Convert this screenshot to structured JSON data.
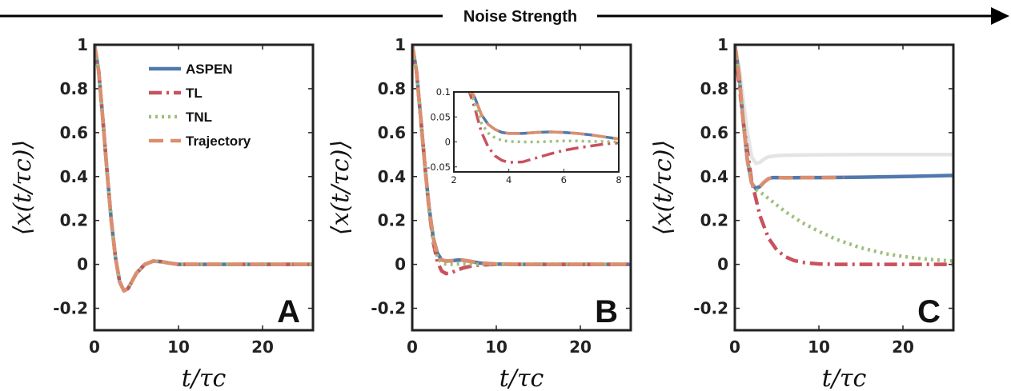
{
  "banner": {
    "label": "Noise Strength"
  },
  "colors": {
    "ASPEN": "#5079ad",
    "TL": "#c8525e",
    "TNL": "#9fc07d",
    "Trajectory": "#dc8e6e",
    "ghost": "#e4e4e4",
    "axis": "#222222"
  },
  "chart_data": [
    {
      "type": "line",
      "panel_label": "A",
      "xlabel": "t/τc",
      "ylabel": "⟨x(t/τc)⟩",
      "xlim": [
        0,
        26
      ],
      "ylim": [
        -0.3,
        1
      ],
      "xticks": [
        "0",
        "10",
        "20"
      ],
      "yticks": [
        "-0.2",
        "0",
        "0.2",
        "0.4",
        "0.6",
        "0.8",
        "1"
      ],
      "legend_position": "top-right",
      "series": [
        {
          "name": "ASPEN",
          "x": [
            0,
            0.5,
            1,
            1.5,
            2,
            2.5,
            3,
            3.5,
            4,
            5,
            6,
            7,
            8,
            9,
            10,
            12,
            15,
            20,
            26
          ],
          "y": [
            1,
            0.88,
            0.66,
            0.42,
            0.2,
            0.03,
            -0.08,
            -0.12,
            -0.11,
            -0.04,
            0.0,
            0.015,
            0.012,
            0.005,
            0.0,
            0.0,
            0.0,
            0.0,
            0.0
          ]
        },
        {
          "name": "TL",
          "x": [
            0,
            0.5,
            1,
            1.5,
            2,
            2.5,
            3,
            3.5,
            4,
            5,
            6,
            7,
            8,
            9,
            10,
            12,
            15,
            20,
            26
          ],
          "y": [
            1,
            0.88,
            0.66,
            0.42,
            0.2,
            0.03,
            -0.08,
            -0.12,
            -0.11,
            -0.04,
            0.0,
            0.015,
            0.012,
            0.005,
            0.0,
            0.0,
            0.0,
            0.0,
            0.0
          ]
        },
        {
          "name": "TNL",
          "x": [
            0,
            0.5,
            1,
            1.5,
            2,
            2.5,
            3,
            3.5,
            4,
            5,
            6,
            7,
            8,
            9,
            10,
            12,
            15,
            20,
            26
          ],
          "y": [
            1,
            0.88,
            0.66,
            0.42,
            0.2,
            0.03,
            -0.08,
            -0.12,
            -0.11,
            -0.04,
            0.0,
            0.015,
            0.012,
            0.005,
            0.0,
            0.0,
            0.0,
            0.0,
            0.0
          ]
        },
        {
          "name": "Trajectory",
          "x": [
            0,
            0.5,
            1,
            1.5,
            2,
            2.5,
            3,
            3.5,
            4,
            5,
            6,
            7,
            8,
            9,
            10,
            12,
            15,
            20,
            26
          ],
          "y": [
            1,
            0.88,
            0.66,
            0.42,
            0.2,
            0.03,
            -0.08,
            -0.12,
            -0.11,
            -0.04,
            0.0,
            0.015,
            0.012,
            0.005,
            0.0,
            0.0,
            0.0,
            0.0,
            0.0
          ]
        }
      ]
    },
    {
      "type": "line",
      "panel_label": "B",
      "xlabel": "t/τc",
      "ylabel": "⟨x(t/τc)⟩",
      "xlim": [
        0,
        26
      ],
      "ylim": [
        -0.3,
        1
      ],
      "xticks": [
        "0",
        "10",
        "20"
      ],
      "yticks": [
        "-0.2",
        "0",
        "0.2",
        "0.4",
        "0.6",
        "0.8",
        "1"
      ],
      "series": [
        {
          "name": "ASPEN",
          "x": [
            0,
            0.5,
            1,
            1.5,
            2,
            2.5,
            3,
            3.5,
            4,
            4.5,
            5,
            5.5,
            6,
            7,
            8,
            10,
            12,
            15,
            20,
            26
          ],
          "y": [
            1,
            0.88,
            0.67,
            0.45,
            0.26,
            0.12,
            0.05,
            0.02,
            0.015,
            0.016,
            0.018,
            0.02,
            0.019,
            0.013,
            0.006,
            0.001,
            0.0,
            0.0,
            0.0,
            0.0
          ]
        },
        {
          "name": "TL",
          "x": [
            0,
            0.5,
            1,
            1.5,
            2,
            2.5,
            3,
            3.5,
            4,
            4.5,
            5,
            5.5,
            6,
            7,
            8,
            10,
            12,
            15,
            20,
            26
          ],
          "y": [
            1,
            0.88,
            0.67,
            0.45,
            0.25,
            0.1,
            0.01,
            -0.03,
            -0.042,
            -0.04,
            -0.032,
            -0.024,
            -0.017,
            -0.008,
            -0.003,
            0.0,
            0.0,
            0.0,
            0.0,
            0.0
          ]
        },
        {
          "name": "TNL",
          "x": [
            0,
            0.5,
            1,
            1.5,
            2,
            2.5,
            3,
            3.5,
            4,
            4.5,
            5,
            5.5,
            6,
            7,
            8,
            10,
            12,
            15,
            20,
            26
          ],
          "y": [
            1,
            0.88,
            0.67,
            0.45,
            0.26,
            0.11,
            0.03,
            0.006,
            0.001,
            0.0,
            0.001,
            0.002,
            0.002,
            0.001,
            0.0,
            0.0,
            0.0,
            0.0,
            0.0,
            0.0
          ]
        },
        {
          "name": "Trajectory",
          "x": [
            0,
            0.5,
            1,
            1.5,
            2,
            2.5,
            3,
            3.5,
            4,
            4.5,
            5,
            5.5,
            6,
            7,
            8,
            10,
            12,
            15,
            20,
            26
          ],
          "y": [
            1,
            0.88,
            0.67,
            0.45,
            0.26,
            0.12,
            0.05,
            0.02,
            0.015,
            0.016,
            0.018,
            0.02,
            0.019,
            0.013,
            0.006,
            0.001,
            0.0,
            0.0,
            0.0,
            0.0
          ]
        }
      ],
      "inset": {
        "xlim": [
          2,
          8
        ],
        "ylim": [
          -0.06,
          0.1
        ],
        "xticks": [
          "2",
          "4",
          "6",
          "8"
        ],
        "yticks": [
          "-0.05",
          "0",
          "0.05",
          "0.1"
        ],
        "tick_values_x": [
          2,
          4,
          6,
          8
        ],
        "tick_values_y": [
          -0.05,
          0,
          0.05,
          0.1
        ],
        "series": [
          {
            "name": "ASPEN",
            "x": [
              2.5,
              2.75,
              3,
              3.25,
              3.5,
              3.75,
              4,
              4.5,
              5,
              5.5,
              6,
              6.5,
              7,
              7.5,
              8
            ],
            "y": [
              0.115,
              0.09,
              0.055,
              0.035,
              0.025,
              0.019,
              0.017,
              0.017,
              0.019,
              0.02,
              0.019,
              0.017,
              0.014,
              0.01,
              0.006
            ]
          },
          {
            "name": "TL",
            "x": [
              2.5,
              2.75,
              3,
              3.25,
              3.5,
              3.75,
              4,
              4.5,
              5,
              5.5,
              6,
              6.5,
              7,
              7.5,
              8
            ],
            "y": [
              0.11,
              0.07,
              0.02,
              -0.01,
              -0.028,
              -0.037,
              -0.041,
              -0.04,
              -0.032,
              -0.024,
              -0.017,
              -0.012,
              -0.008,
              -0.004,
              -0.002
            ]
          },
          {
            "name": "TNL",
            "x": [
              2.5,
              2.75,
              3,
              3.25,
              3.5,
              3.75,
              4,
              4.5,
              5,
              5.5,
              6,
              6.5,
              7,
              7.5,
              8
            ],
            "y": [
              0.112,
              0.08,
              0.038,
              0.018,
              0.008,
              0.003,
              0.001,
              0.0,
              0.0,
              0.001,
              0.002,
              0.002,
              0.001,
              0.001,
              0.0
            ]
          },
          {
            "name": "Trajectory",
            "x": [
              2.5,
              2.75,
              3,
              3.25,
              3.5,
              3.75,
              4,
              4.5,
              5,
              5.5,
              6,
              6.5,
              7,
              7.5,
              8
            ],
            "y": [
              0.115,
              0.09,
              0.055,
              0.035,
              0.025,
              0.019,
              0.017,
              0.017,
              0.019,
              0.02,
              0.019,
              0.017,
              0.014,
              0.01,
              0.006
            ]
          }
        ]
      }
    },
    {
      "type": "line",
      "panel_label": "C",
      "xlabel": "t/τc",
      "ylabel": "⟨x(t/τc)⟩",
      "xlim": [
        0,
        26
      ],
      "ylim": [
        -0.3,
        1
      ],
      "xticks": [
        "0",
        "10",
        "20"
      ],
      "yticks": [
        "-0.2",
        "0",
        "0.2",
        "0.4",
        "0.6",
        "0.8",
        "1"
      ],
      "background_reference": {
        "x": [
          0,
          0.5,
          1,
          1.5,
          2,
          2.5,
          3,
          3.5,
          4,
          5,
          6,
          8,
          10,
          15,
          20,
          26
        ],
        "y": [
          1,
          0.9,
          0.75,
          0.6,
          0.49,
          0.46,
          0.465,
          0.48,
          0.49,
          0.495,
          0.497,
          0.498,
          0.499,
          0.5,
          0.5,
          0.5
        ]
      },
      "series": [
        {
          "name": "ASPEN",
          "x": [
            0,
            0.5,
            1,
            1.5,
            2,
            2.5,
            3,
            3.5,
            4,
            4.5,
            5,
            6,
            8,
            10,
            15,
            20,
            26
          ],
          "y": [
            1,
            0.86,
            0.65,
            0.47,
            0.37,
            0.345,
            0.355,
            0.375,
            0.39,
            0.395,
            0.395,
            0.394,
            0.395,
            0.395,
            0.397,
            0.4,
            0.405
          ]
        },
        {
          "name": "TL",
          "x": [
            0,
            1,
            2,
            3,
            4,
            5,
            6,
            7,
            8,
            9,
            10,
            12,
            15,
            20,
            26
          ],
          "y": [
            1,
            0.65,
            0.38,
            0.22,
            0.12,
            0.065,
            0.035,
            0.018,
            0.009,
            0.005,
            0.002,
            0.0,
            0.0,
            0.0,
            0.0
          ]
        },
        {
          "name": "TNL",
          "x": [
            0,
            0.5,
            1,
            1.5,
            2,
            2.5,
            3,
            4,
            5,
            6,
            8,
            10,
            12,
            15,
            18,
            20,
            22,
            24,
            26
          ],
          "y": [
            1,
            0.86,
            0.65,
            0.48,
            0.37,
            0.34,
            0.33,
            0.3,
            0.27,
            0.24,
            0.19,
            0.15,
            0.115,
            0.075,
            0.048,
            0.036,
            0.027,
            0.02,
            0.015
          ]
        },
        {
          "name": "Trajectory",
          "x": [
            0,
            0.5,
            1,
            1.5,
            2,
            2.5,
            3,
            3.5,
            4,
            4.5,
            5,
            6,
            8,
            10,
            13
          ],
          "y": [
            1,
            0.86,
            0.65,
            0.47,
            0.37,
            0.345,
            0.355,
            0.375,
            0.39,
            0.395,
            0.395,
            0.394,
            0.395,
            0.395,
            0.396
          ]
        }
      ]
    }
  ]
}
